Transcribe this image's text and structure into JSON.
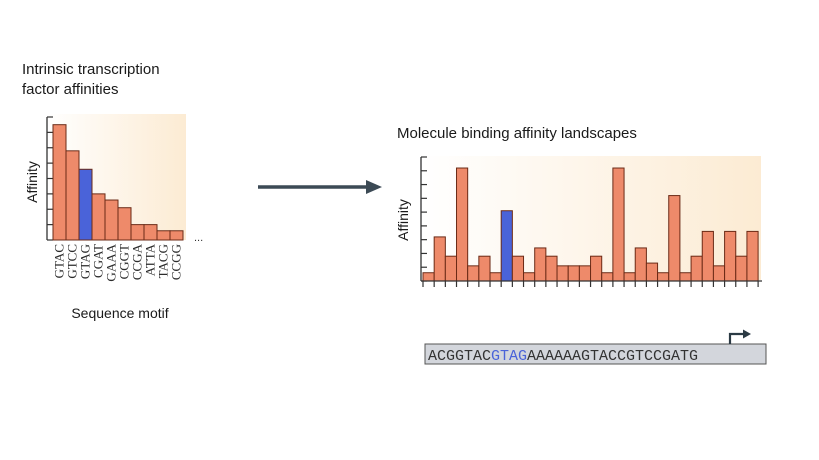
{
  "left_panel": {
    "title_line1": "Intrinsic transcription",
    "title_line2": "factor affinities",
    "ylabel": "Affinity",
    "xlabel": "Sequence motif",
    "ellipsis": "...",
    "highlight_color": "#4a63d9",
    "bar_color": "#ee8a6a"
  },
  "right_panel": {
    "title": "Molecule binding affinity landscapes",
    "ylabel": "Affinity",
    "highlight_color": "#4a63d9",
    "bar_color": "#ee8a6a"
  },
  "sequence": {
    "prefix": "ACGGTAC",
    "highlight": "GTAG",
    "suffix": "AAAAAAGTACCGTCCGATG",
    "highlight_color": "#4a63d9",
    "box_color": "#d3d6dc",
    "tss_icon": "bent-arrow-icon"
  },
  "connector": {
    "icon": "right-arrow-icon",
    "color": "#3c4a55"
  },
  "chart_data": [
    {
      "type": "bar",
      "title": "Intrinsic transcription factor affinities",
      "xlabel": "Sequence motif",
      "ylabel": "Affinity",
      "categories": [
        "GTAC",
        "GTCC",
        "GTAG",
        "CGAT",
        "GAAA",
        "CGGT",
        "CCGA",
        "ATTA",
        "TACG",
        "CCGG"
      ],
      "values": [
        7.5,
        5.8,
        4.6,
        3.0,
        2.6,
        2.1,
        1.0,
        1.0,
        0.6,
        0.6
      ],
      "highlight_index": 2,
      "ylim": [
        0,
        8
      ]
    },
    {
      "type": "bar",
      "title": "Molecule binding affinity landscapes",
      "ylabel": "Affinity",
      "values": [
        0.6,
        3.2,
        1.8,
        8.2,
        1.1,
        1.8,
        0.6,
        5.1,
        1.8,
        0.6,
        2.4,
        1.8,
        1.1,
        1.1,
        1.1,
        1.8,
        0.6,
        8.2,
        0.6,
        2.4,
        1.3,
        0.6,
        6.2,
        0.6,
        1.8,
        3.6,
        1.1,
        3.6,
        1.8,
        3.6
      ],
      "highlight_index": 7,
      "ylim": [
        0,
        9
      ]
    }
  ]
}
